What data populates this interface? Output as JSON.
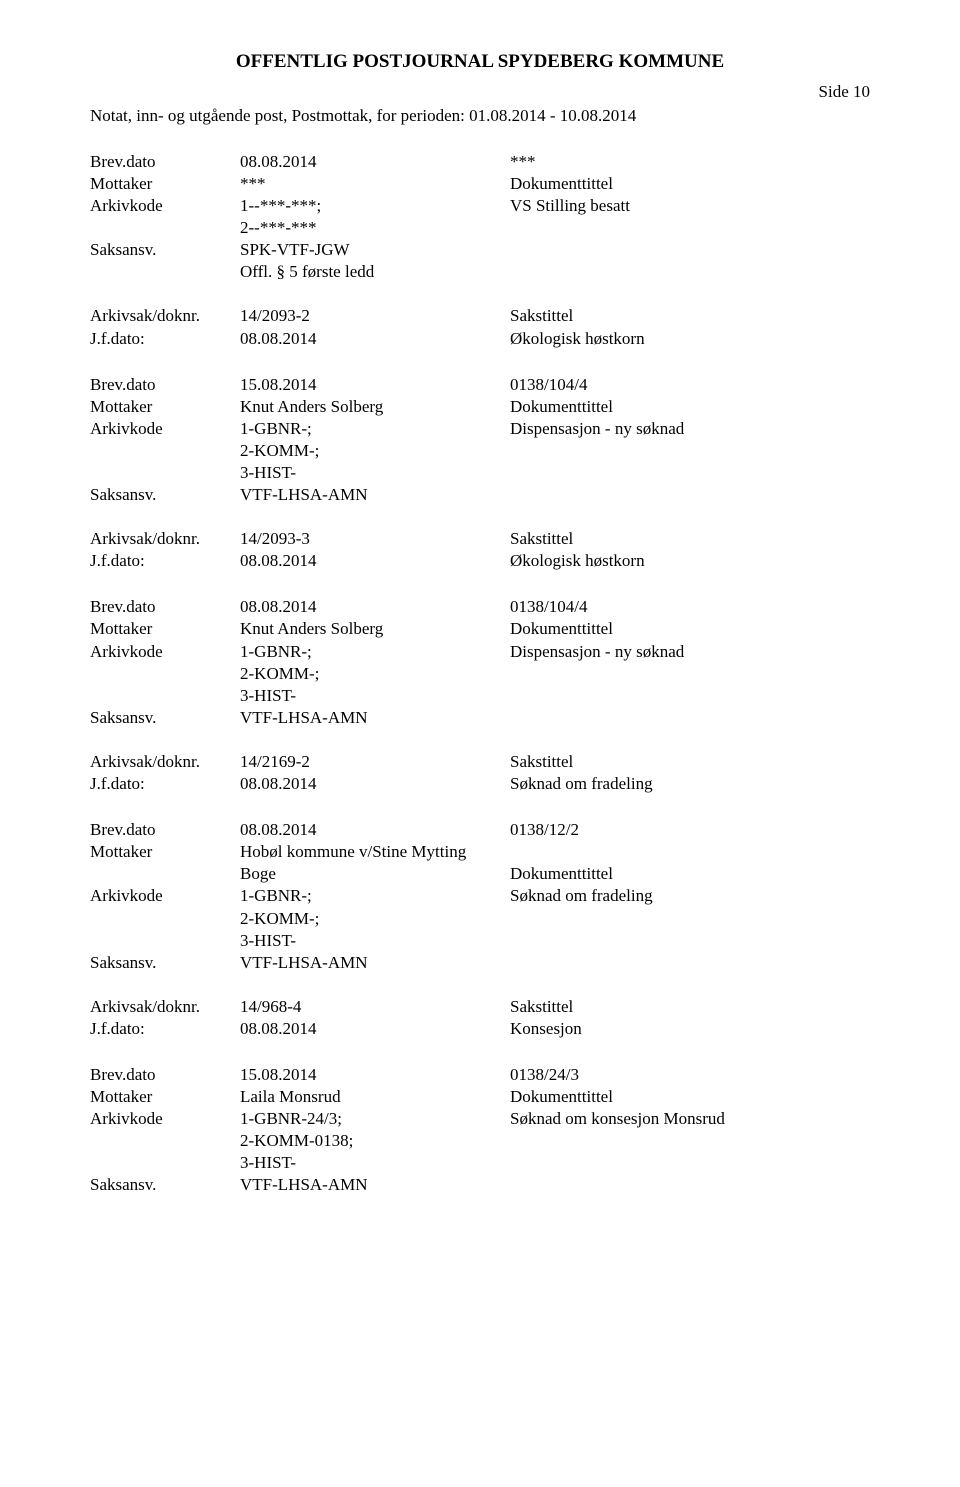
{
  "header": {
    "title": "OFFENTLIG POSTJOURNAL SPYDEBERG KOMMUNE",
    "pageNumber": "Side 10",
    "subtitle": "Notat, inn- og utgående post, Postmottak, for perioden: 01.08.2014 - 10.08.2014"
  },
  "labels": {
    "brevdato": "Brev.dato",
    "mottaker": "Mottaker",
    "arkivkode": "Arkivkode",
    "saksansv": "Saksansv.",
    "arkivsak": "Arkivsak/doknr.",
    "jfdato": "J.f.dato:",
    "dokumenttittel": "Dokumenttittel",
    "sakstittel": "Sakstittel"
  },
  "entries": [
    {
      "brevdato": "08.08.2014",
      "brevdatoRight": "***",
      "mottaker": "***",
      "mottakerRight": "",
      "arkivkodeLines": [
        "1--***-***;",
        "2--***-***"
      ],
      "arkivkodeRight": "VS Stilling besatt",
      "saksansvLines": [
        "SPK-VTF-JGW",
        "Offl. § 5 første ledd"
      ],
      "arkivsak": "14/2093-2",
      "jfdato": "08.08.2014",
      "jfdatoRight": "Økologisk høstkorn"
    },
    {
      "brevdato": "15.08.2014",
      "brevdatoRight": "0138/104/4",
      "mottaker": "Knut Anders Solberg",
      "mottakerRight": "",
      "arkivkodeLines": [
        "1-GBNR-;",
        "2-KOMM-;",
        "3-HIST-"
      ],
      "arkivkodeRight": "Dispensasjon - ny søknad",
      "saksansvLines": [
        "VTF-LHSA-AMN"
      ],
      "arkivsak": "14/2093-3",
      "jfdato": "08.08.2014",
      "jfdatoRight": "Økologisk høstkorn"
    },
    {
      "brevdato": "08.08.2014",
      "brevdatoRight": "0138/104/4",
      "mottaker": "Knut Anders Solberg",
      "mottakerRight": "",
      "arkivkodeLines": [
        "1-GBNR-;",
        "2-KOMM-;",
        "3-HIST-"
      ],
      "arkivkodeRight": "Dispensasjon - ny søknad",
      "saksansvLines": [
        "VTF-LHSA-AMN"
      ],
      "arkivsak": "14/2169-2",
      "jfdato": "08.08.2014",
      "jfdatoRight": "Søknad om fradeling"
    },
    {
      "brevdato": "08.08.2014",
      "brevdatoRight": "0138/12/2",
      "mottaker": "Hobøl kommune v/Stine Mytting Boge",
      "mottakerLines": [
        "Hobøl kommune v/Stine Mytting",
        "Boge"
      ],
      "mottakerRight": "",
      "arkivkodeLines": [
        "1-GBNR-;",
        "2-KOMM-;",
        "3-HIST-"
      ],
      "arkivkodeRight": "Søknad om fradeling",
      "saksansvLines": [
        "VTF-LHSA-AMN"
      ],
      "arkivsak": "14/968-4",
      "jfdato": "08.08.2014",
      "jfdatoRight": "Konsesjon"
    },
    {
      "brevdato": "15.08.2014",
      "brevdatoRight": "0138/24/3",
      "mottaker": "Laila Monsrud",
      "mottakerRight": "",
      "arkivkodeLines": [
        "1-GBNR-24/3;",
        "2-KOMM-0138;",
        "3-HIST-"
      ],
      "arkivkodeRight": "Søknad om konsesjon Monsrud",
      "saksansvLines": [
        "VTF-LHSA-AMN"
      ],
      "noFooter": true
    }
  ]
}
